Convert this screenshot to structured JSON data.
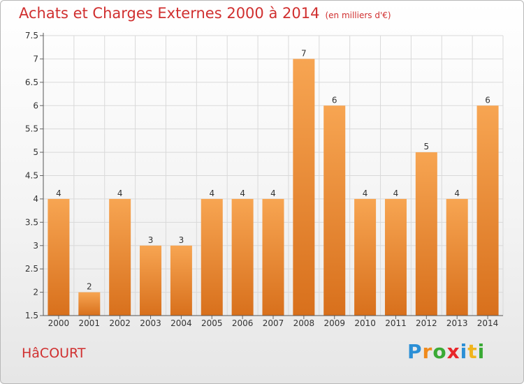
{
  "header": {
    "title": "Achats et Charges Externes 2000 à 2014",
    "unit": "(en milliers d'€)"
  },
  "footer": {
    "commune": "HâCOURT",
    "logo_letters": [
      {
        "ch": "P",
        "color": "#2b8fd6"
      },
      {
        "ch": "r",
        "color": "#f08a1c"
      },
      {
        "ch": "o",
        "color": "#3aaa35"
      },
      {
        "ch": "x",
        "color": "#e8262a"
      },
      {
        "ch": "i",
        "color": "#2b8fd6"
      },
      {
        "ch": "t",
        "color": "#f0b41c"
      },
      {
        "ch": "i",
        "color": "#3aaa35"
      }
    ]
  },
  "colors": {
    "bar_top": "#f7a552",
    "bar_bottom": "#d8701c",
    "title": "#d02f2f",
    "grid": "#d9d9d9"
  },
  "chart_data": {
    "type": "bar",
    "categories": [
      "2000",
      "2001",
      "2002",
      "2003",
      "2004",
      "2005",
      "2006",
      "2007",
      "2008",
      "2009",
      "2010",
      "2011",
      "2012",
      "2013",
      "2014"
    ],
    "values": [
      4,
      2,
      4,
      3,
      3,
      4,
      4,
      4,
      7,
      6,
      4,
      4,
      5,
      4,
      6
    ],
    "data_labels": [
      "4",
      "2",
      "4",
      "3",
      "3",
      "4",
      "4",
      "4",
      "7",
      "6",
      "4",
      "4",
      "5",
      "4",
      "6"
    ],
    "ylim": [
      1.5,
      7.5
    ],
    "yticks": [
      1.5,
      2,
      2.5,
      3,
      3.5,
      4,
      4.5,
      5,
      5.5,
      6,
      6.5,
      7,
      7.5
    ],
    "ytick_labels": [
      "1.5",
      "2",
      "2.5",
      "3",
      "3.5",
      "4",
      "4.5",
      "5",
      "5.5",
      "6",
      "6.5",
      "7",
      "7.5"
    ],
    "grid": true,
    "xlabel": "",
    "ylabel": ""
  }
}
